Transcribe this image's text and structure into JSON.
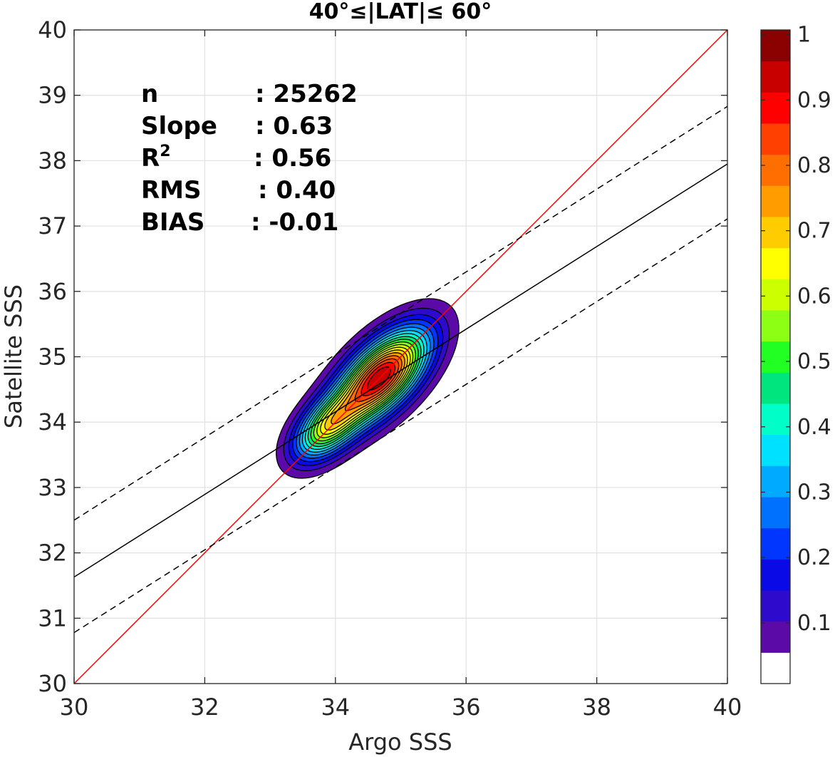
{
  "chart_data": {
    "type": "contour",
    "title": "40°≤|LAT|≤ 60°",
    "xlabel": "Argo SSS",
    "ylabel": "Satellite SSS",
    "xlim": [
      30,
      40
    ],
    "ylim": [
      30,
      40
    ],
    "xticks": [
      "30",
      "32",
      "34",
      "36",
      "38",
      "40"
    ],
    "yticks": [
      "30",
      "31",
      "32",
      "33",
      "34",
      "35",
      "36",
      "37",
      "38",
      "39",
      "40"
    ],
    "grid": true,
    "stats": [
      {
        "label": "n",
        "value": ": 25262"
      },
      {
        "label": "Slope",
        "value": ": 0.63"
      },
      {
        "label": "R",
        "sup": "2",
        "value": ": 0.56"
      },
      {
        "label": "RMS",
        "value": ": 0.40"
      },
      {
        "label": "BIAS",
        "value": ": -0.01"
      }
    ],
    "lines": [
      {
        "style": "solid",
        "color": "#ff0000",
        "x": [
          30,
          40
        ],
        "y": [
          30,
          40
        ]
      },
      {
        "style": "solid",
        "color": "#000000",
        "x": [
          30,
          40
        ],
        "y": [
          31.63,
          37.95
        ]
      },
      {
        "style": "dashed",
        "color": "#000000",
        "x": [
          30,
          40
        ],
        "y": [
          32.5,
          38.83
        ]
      },
      {
        "style": "dashed",
        "color": "#000000",
        "x": [
          30,
          40
        ],
        "y": [
          30.78,
          37.11
        ]
      }
    ],
    "density_peaks": [
      {
        "x": 34.7,
        "y": 34.7,
        "value": 1.0
      },
      {
        "x": 33.85,
        "y": 33.9,
        "value": 0.75
      }
    ],
    "colorbar": {
      "range": [
        0,
        1
      ],
      "ticks": [
        "0.1",
        "0.2",
        "0.3",
        "0.4",
        "0.5",
        "0.6",
        "0.7",
        "0.8",
        "0.9",
        "1"
      ],
      "colors": [
        "#ffffff",
        "#5b0aa8",
        "#2d0acc",
        "#0a0ae6",
        "#0036ff",
        "#0070ff",
        "#00aaff",
        "#00e0ff",
        "#00ffc8",
        "#00e57d",
        "#22ff22",
        "#8cff14",
        "#ccff00",
        "#ffff00",
        "#ffcc00",
        "#ff9d00",
        "#ff6e00",
        "#ff4000",
        "#ff0000",
        "#c80000",
        "#8b0000"
      ]
    }
  }
}
